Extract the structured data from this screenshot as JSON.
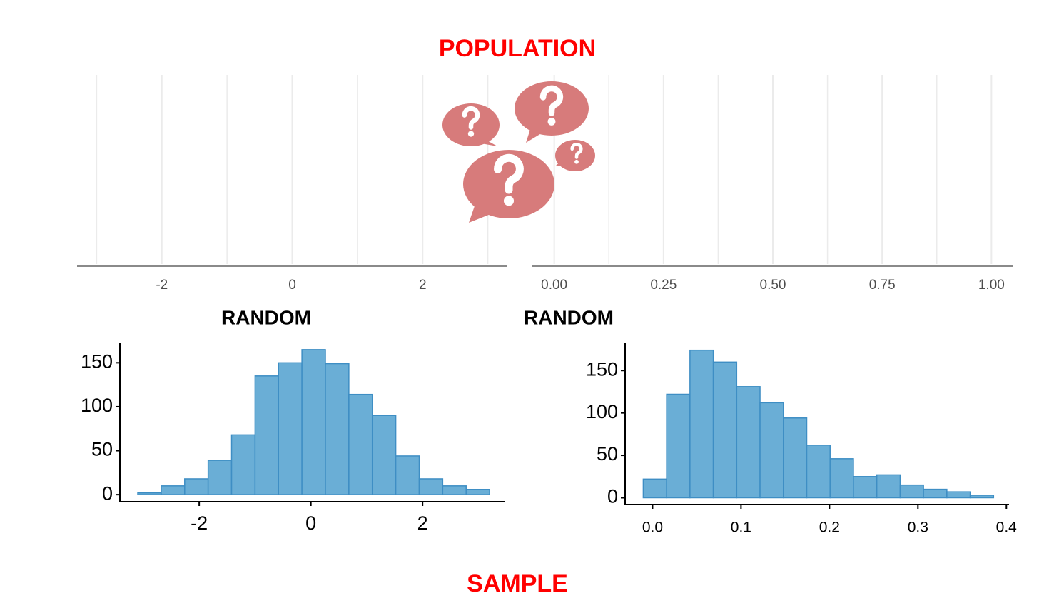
{
  "heading": "POPULATION",
  "footer": "SAMPLE",
  "chart_data": [
    {
      "type": "blank",
      "xlim": [
        -3.3,
        3.3
      ],
      "xticks": [
        -2,
        0,
        2
      ],
      "minor_gridlines": [
        -3,
        -1,
        1,
        3
      ],
      "grid": true
    },
    {
      "type": "blank",
      "xlim": [
        -0.05,
        1.05
      ],
      "xticks": [
        {
          "value": 0,
          "label": "0.00"
        },
        {
          "value": 0.25,
          "label": "0.25"
        },
        {
          "value": 0.5,
          "label": "0.50"
        },
        {
          "value": 0.75,
          "label": "0.75"
        },
        {
          "value": 1,
          "label": "1.00"
        }
      ],
      "minor_gridlines": [
        0.125,
        0.375,
        0.625,
        0.875
      ],
      "grid": true
    },
    {
      "type": "histogram",
      "title": "RANDOM",
      "color": "#6aaed6",
      "edge_color": "#3e8ec4",
      "bins": [
        -3.1,
        -2.68,
        -2.26,
        -1.84,
        -1.42,
        -1.0,
        -0.58,
        -0.16,
        0.26,
        0.68,
        1.1,
        1.52,
        1.94,
        2.36,
        2.78,
        3.2
      ],
      "values": [
        2,
        10,
        18,
        39,
        68,
        135,
        150,
        165,
        149,
        114,
        90,
        44,
        18,
        10,
        6
      ],
      "xlim": [
        -3.42,
        3.48
      ],
      "xticks": [
        -2,
        0,
        2
      ],
      "ylim": [
        -8,
        173
      ],
      "yticks": [
        0,
        50,
        100,
        150
      ]
    },
    {
      "type": "histogram",
      "title": "RANDOM",
      "color": "#6aaed6",
      "edge_color": "#3e8ec4",
      "bins": [
        -0.0105,
        0.0159,
        0.0423,
        0.0687,
        0.0951,
        0.1215,
        0.1479,
        0.1743,
        0.2007,
        0.2271,
        0.2535,
        0.2799,
        0.3063,
        0.3327,
        0.3591,
        0.3855
      ],
      "values": [
        22,
        122,
        174,
        160,
        131,
        112,
        94,
        62,
        46,
        25,
        27,
        15,
        10,
        7,
        3
      ],
      "xlim": [
        -0.031,
        0.403
      ],
      "xticks": [
        {
          "value": 0,
          "label": "0.0"
        },
        {
          "value": 0.1,
          "label": "0.1"
        },
        {
          "value": 0.2,
          "label": "0.2"
        },
        {
          "value": 0.3,
          "label": "0.3"
        },
        {
          "value": 0.4,
          "label": "0.4"
        }
      ],
      "ylim": [
        -8,
        183
      ],
      "yticks": [
        0,
        50,
        100,
        150
      ]
    }
  ]
}
